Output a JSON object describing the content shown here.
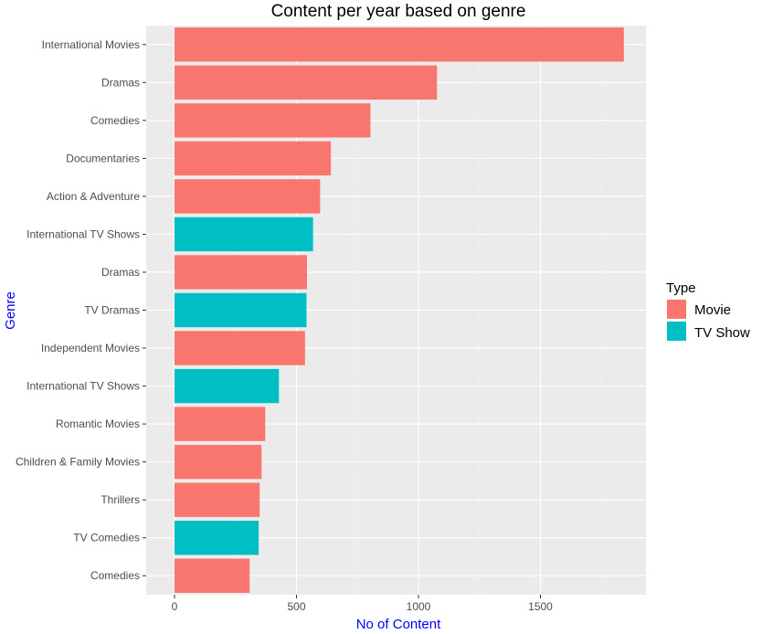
{
  "chart_data": {
    "type": "bar",
    "orientation": "horizontal",
    "title": "Content per year based on genre",
    "xlabel": "No of Content",
    "ylabel": "Genre",
    "xlim": [
      0,
      1900
    ],
    "x_ticks": [
      0,
      500,
      1000,
      1500
    ],
    "grid": true,
    "legend": {
      "title": "Type",
      "placement": "right",
      "entries": [
        {
          "name": "Movie",
          "color": "#F8766D"
        },
        {
          "name": "TV Show",
          "color": "#00BFC4"
        }
      ]
    },
    "categories": [
      "International Movies",
      "Dramas",
      "Comedies",
      "Documentaries",
      "Action & Adventure",
      "International TV Shows",
      "Dramas",
      "TV Dramas",
      "Independent Movies",
      "International TV Shows",
      "Romantic Movies",
      "Children & Family Movies",
      "Thrillers",
      "TV Comedies",
      "Comedies"
    ],
    "values": [
      1842,
      1076,
      803,
      641,
      597,
      568,
      543,
      541,
      535,
      428,
      372,
      357,
      349,
      345,
      308
    ],
    "types": [
      "Movie",
      "Movie",
      "Movie",
      "Movie",
      "Movie",
      "TV Show",
      "Movie",
      "TV Show",
      "Movie",
      "TV Show",
      "Movie",
      "Movie",
      "Movie",
      "TV Show",
      "Movie"
    ]
  },
  "colors": {
    "panel_background": "#EBEBEB",
    "grid_major": "#FFFFFF",
    "grid_minor": "#F5F5F5",
    "axis_title": "#0000FF"
  }
}
